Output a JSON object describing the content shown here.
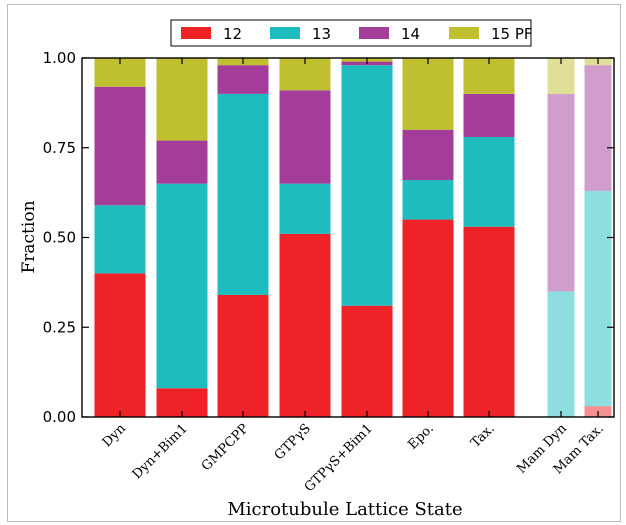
{
  "chart_data": {
    "type": "bar",
    "stacked": true,
    "title": "",
    "xlabel": "Microtubule Lattice State",
    "ylabel": "Fraction",
    "ylim": [
      0,
      1
    ],
    "yticks": [
      "0.00",
      "0.25",
      "0.50",
      "0.75",
      "1.00"
    ],
    "legend_placement": "top-center",
    "categories": [
      "Dyn",
      "Dyn+Bim1",
      "GMPCPP",
      "GTPγS",
      "GTPγS+Bim1",
      "Epo.",
      "Tax.",
      "Mam Dyn",
      "Mam Tax."
    ],
    "faded_categories": [
      "Mam Dyn",
      "Mam Tax."
    ],
    "series": [
      {
        "name": "12",
        "color": "#ee2227",
        "values": [
          0.4,
          0.08,
          0.34,
          0.51,
          0.31,
          0.55,
          0.53,
          0.0,
          0.03
        ]
      },
      {
        "name": "13",
        "color": "#1ebcbf",
        "values": [
          0.19,
          0.57,
          0.56,
          0.14,
          0.67,
          0.11,
          0.25,
          0.35,
          0.6
        ]
      },
      {
        "name": "14",
        "color": "#a43c9a",
        "values": [
          0.33,
          0.12,
          0.08,
          0.26,
          0.01,
          0.14,
          0.12,
          0.55,
          0.35
        ]
      },
      {
        "name": "15 PF",
        "color": "#bfbf2f",
        "values": [
          0.08,
          0.23,
          0.02,
          0.09,
          0.01,
          0.2,
          0.1,
          0.1,
          0.02
        ]
      }
    ]
  }
}
